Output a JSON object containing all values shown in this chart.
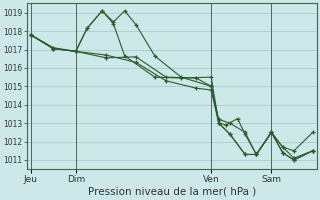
{
  "title": "Pression niveau de la mer( hPa )",
  "bg_color": "#cce8e8",
  "grid_color": "#aacccc",
  "line_color": "#2d5a2d",
  "ylim": [
    1010.5,
    1019.5
  ],
  "yticks": [
    1011,
    1012,
    1013,
    1014,
    1015,
    1016,
    1017,
    1018,
    1019
  ],
  "xtick_labels": [
    "Jeu",
    "Dim",
    "Ven",
    "Sam"
  ],
  "xtick_positions": [
    0,
    6,
    24,
    32
  ],
  "vline_positions": [
    0,
    6,
    24,
    32
  ],
  "xlim": [
    -0.5,
    38
  ],
  "lines": [
    [
      0.0,
      1017.8,
      3.0,
      1017.1,
      6.0,
      1016.9,
      10.0,
      1016.55,
      14.0,
      1016.6,
      18.0,
      1015.5,
      22.0,
      1015.45,
      24.0,
      1015.0,
      25.0,
      1013.0,
      26.0,
      1012.9,
      27.5,
      1013.25,
      28.5,
      1012.4,
      30.0,
      1011.3,
      32.0,
      1012.5,
      33.5,
      1011.7,
      35.0,
      1011.5,
      37.5,
      1012.5
    ],
    [
      0.0,
      1017.8,
      3.0,
      1017.05,
      6.0,
      1016.9,
      7.5,
      1018.15,
      9.5,
      1019.1,
      11.0,
      1018.5,
      12.5,
      1019.1,
      14.0,
      1018.35,
      16.5,
      1016.65,
      20.0,
      1015.5,
      24.0,
      1015.0,
      25.0,
      1013.2,
      26.5,
      1013.0,
      28.5,
      1012.5,
      30.0,
      1011.3,
      32.0,
      1012.5,
      33.5,
      1011.7,
      35.0,
      1011.1,
      37.5,
      1011.5
    ],
    [
      0.0,
      1017.8,
      3.0,
      1017.05,
      6.0,
      1016.9,
      7.5,
      1018.15,
      9.5,
      1019.1,
      11.0,
      1018.4,
      12.5,
      1016.65,
      16.5,
      1015.5,
      20.0,
      1015.45,
      24.0,
      1015.5,
      25.0,
      1013.0,
      26.5,
      1012.4,
      28.5,
      1011.3,
      30.0,
      1011.3,
      32.0,
      1012.5,
      33.5,
      1011.4,
      35.0,
      1011.0,
      37.5,
      1011.5
    ],
    [
      0.0,
      1017.8,
      3.0,
      1017.05,
      6.0,
      1016.9,
      10.0,
      1016.7,
      14.0,
      1016.3,
      18.0,
      1015.3,
      22.0,
      1014.9,
      24.0,
      1014.8,
      25.0,
      1013.0,
      26.5,
      1012.4,
      28.5,
      1011.3,
      30.0,
      1011.3,
      32.0,
      1012.5,
      33.5,
      1011.4,
      35.0,
      1011.0,
      37.5,
      1011.5
    ]
  ]
}
